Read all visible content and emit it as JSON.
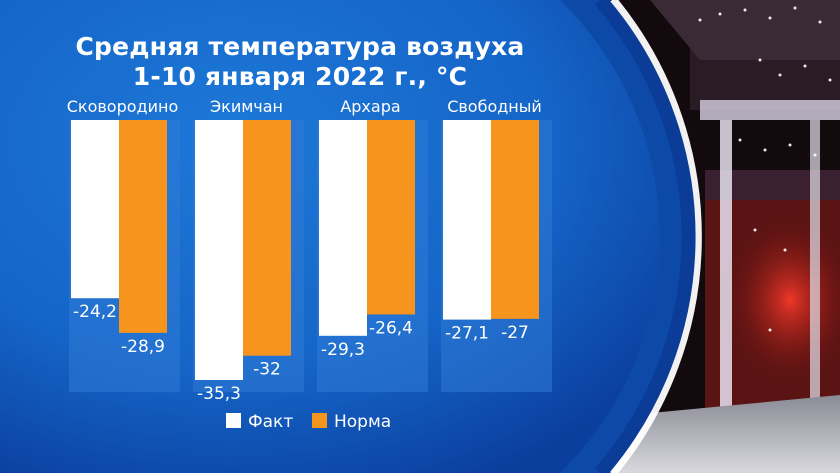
{
  "chart_data": {
    "type": "bar",
    "title_lines": [
      "Средняя температура воздуха",
      "1-10 января 2022 г., °C"
    ],
    "categories": [
      "Сковородино",
      "Экимчан",
      "Архара",
      "Свободный"
    ],
    "series": [
      {
        "name": "Факт",
        "color": "#ffffff",
        "labels": [
          "-24,2",
          "-35,3",
          "-29,3",
          "-27,1"
        ],
        "values": [
          -24.2,
          -35.3,
          -29.3,
          -27.1
        ]
      },
      {
        "name": "Норма",
        "color": "#f7941d",
        "labels": [
          "-28,9",
          "-32",
          "-26,4",
          "-27"
        ],
        "values": [
          -28.9,
          -32,
          -26.4,
          -27
        ]
      }
    ],
    "ylim": [
      -35.3,
      0
    ],
    "legend": "bottom-center"
  },
  "colors": {
    "panel_blue": "#1565c8",
    "panel_dark": "#0b3f9e",
    "column_bg": "#2f7ad6",
    "ring": "#ffffff",
    "text": "#ffffff"
  }
}
